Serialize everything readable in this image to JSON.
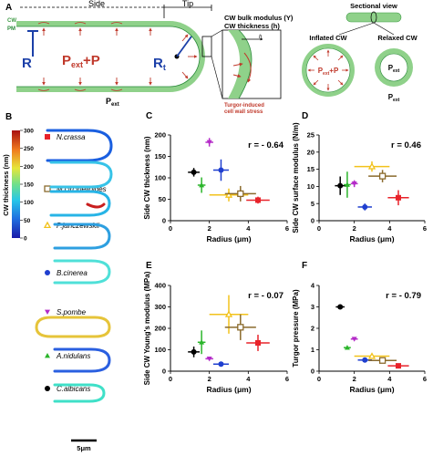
{
  "panelA": {
    "label": "A",
    "side_label": "Side",
    "tip_label": "Tip",
    "cw_label": "CW",
    "pm_label": "PM",
    "R_label": "R",
    "Rt_label": "R",
    "Rt_sub": "t",
    "pext_p_label": "P",
    "pext_p_sub": "ext",
    "pext_p_suffix": "+P",
    "pext_out_label": "P",
    "pext_out_sub": "ext",
    "zoom_title_1": "CW bulk modulus (Y)",
    "zoom_title_2": "CW thickness (h)",
    "h_label": "h",
    "stress_1": "Turgor-induced",
    "stress_2": "cell wall stress",
    "sectional_view": "Sectional view",
    "inflated": "Inflated CW",
    "relaxed": "Relaxed CW",
    "inflated_inner": "P",
    "inflated_inner_sub": "ext",
    "inflated_inner_suffix": "+P",
    "relaxed_inner": "P",
    "relaxed_inner_sub": "ext",
    "relaxed_outer": "P",
    "relaxed_outer_sub": "ext"
  },
  "panelB": {
    "label": "B",
    "colorbar_title": "CW thickness (nm)",
    "colorbar_ticks": [
      "300",
      "250",
      "200",
      "150",
      "100",
      "50",
      "0"
    ],
    "scalebar": "5μm",
    "species": [
      {
        "name": "N.crassa",
        "marker": "square-filled",
        "color": "#e8232a"
      },
      {
        "name": "M.circinelloides",
        "marker": "square-open",
        "color": "#8a6a2c"
      },
      {
        "name": "P.janczewskii",
        "marker": "triangle-open",
        "color": "#f2c21b"
      },
      {
        "name": "B.cinerea",
        "marker": "circle",
        "color": "#1f3fcf"
      },
      {
        "name": "S.pombe",
        "marker": "triangle-down",
        "color": "#b42bc8"
      },
      {
        "name": "A.nidulans",
        "marker": "triangle-up",
        "color": "#2bb52b"
      },
      {
        "name": "C.albicans",
        "marker": "circle",
        "color": "#000000"
      }
    ]
  },
  "colors": {
    "wall": "#8fd18a",
    "wall_dark": "#3e9a45",
    "pm": "#2a8a3a",
    "arrow": "#c0392b",
    "blue": "#1b3fa8"
  },
  "chart_data": [
    {
      "panel": "C",
      "type": "scatter",
      "xlabel": "Radius (μm)",
      "ylabel": "Side CW thickness (nm)",
      "xlim": [
        0,
        6
      ],
      "ylim": [
        0,
        200
      ],
      "xticks": [
        "0",
        "2",
        "4",
        "6"
      ],
      "yticks": [
        "0",
        "50",
        "100",
        "150",
        "200"
      ],
      "annotation": "r = - 0.64",
      "points": [
        {
          "species": "C.albicans",
          "x": 1.2,
          "y": 113,
          "xerr": 0.3,
          "yerr": 10,
          "color": "#000000"
        },
        {
          "species": "A.nidulans",
          "x": 1.6,
          "y": 83,
          "xerr": 0.2,
          "yerr": 18,
          "color": "#2bb52b"
        },
        {
          "species": "S.pombe",
          "x": 2.0,
          "y": 183,
          "xerr": 0.2,
          "yerr": 10,
          "color": "#b42bc8"
        },
        {
          "species": "B.cinerea",
          "x": 2.6,
          "y": 118,
          "xerr": 0.4,
          "yerr": 25,
          "color": "#1f3fcf"
        },
        {
          "species": "P.janczewskii",
          "x": 3.0,
          "y": 60,
          "xerr": 1.0,
          "yerr": 15,
          "color": "#f2c21b"
        },
        {
          "species": "M.circinelloides",
          "x": 3.6,
          "y": 63,
          "xerr": 0.8,
          "yerr": 18,
          "color": "#8a6a2c"
        },
        {
          "species": "N.crassa",
          "x": 4.5,
          "y": 48,
          "xerr": 0.6,
          "yerr": 8,
          "color": "#e8232a"
        }
      ]
    },
    {
      "panel": "D",
      "type": "scatter",
      "xlabel": "Radius (μm)",
      "ylabel": "Side CW surface modulus (N/m)",
      "xlim": [
        0,
        6
      ],
      "ylim": [
        0,
        25
      ],
      "xticks": [
        "0",
        "2",
        "4",
        "6"
      ],
      "yticks": [
        "0",
        "5",
        "10",
        "15",
        "20",
        "25"
      ],
      "annotation": "r = 0.46",
      "points": [
        {
          "species": "C.albicans",
          "x": 1.2,
          "y": 10.2,
          "xerr": 0.3,
          "yerr": 2.7,
          "color": "#000000"
        },
        {
          "species": "A.nidulans",
          "x": 1.6,
          "y": 10.5,
          "xerr": 0.2,
          "yerr": 3.8,
          "color": "#2bb52b"
        },
        {
          "species": "S.pombe",
          "x": 2.0,
          "y": 10.8,
          "xerr": 0.2,
          "yerr": 1.0,
          "color": "#b42bc8"
        },
        {
          "species": "B.cinerea",
          "x": 2.6,
          "y": 4.0,
          "xerr": 0.4,
          "yerr": 1.0,
          "color": "#1f3fcf"
        },
        {
          "species": "P.janczewskii",
          "x": 3.0,
          "y": 15.8,
          "xerr": 1.0,
          "yerr": 1.5,
          "color": "#f2c21b"
        },
        {
          "species": "M.circinelloides",
          "x": 3.6,
          "y": 13.0,
          "xerr": 0.8,
          "yerr": 1.8,
          "color": "#8a6a2c"
        },
        {
          "species": "N.crassa",
          "x": 4.5,
          "y": 6.7,
          "xerr": 0.6,
          "yerr": 2.2,
          "color": "#e8232a"
        }
      ]
    },
    {
      "panel": "E",
      "type": "scatter",
      "xlabel": "Radius (μm)",
      "ylabel": "Side CW Young's modulus (MPa)",
      "xlim": [
        0,
        6
      ],
      "ylim": [
        0,
        400
      ],
      "xticks": [
        "0",
        "2",
        "4",
        "6"
      ],
      "yticks": [
        "0",
        "100",
        "200",
        "300",
        "400"
      ],
      "annotation": "r = - 0.07",
      "points": [
        {
          "species": "C.albicans",
          "x": 1.2,
          "y": 90,
          "xerr": 0.3,
          "yerr": 25,
          "color": "#000000"
        },
        {
          "species": "A.nidulans",
          "x": 1.6,
          "y": 135,
          "xerr": 0.2,
          "yerr": 55,
          "color": "#2bb52b"
        },
        {
          "species": "S.pombe",
          "x": 2.0,
          "y": 58,
          "xerr": 0.2,
          "yerr": 8,
          "color": "#b42bc8"
        },
        {
          "species": "B.cinerea",
          "x": 2.6,
          "y": 33,
          "xerr": 0.4,
          "yerr": 8,
          "color": "#1f3fcf"
        },
        {
          "species": "P.janczewskii",
          "x": 3.0,
          "y": 265,
          "xerr": 1.0,
          "yerr": 90,
          "color": "#f2c21b"
        },
        {
          "species": "M.circinelloides",
          "x": 3.6,
          "y": 205,
          "xerr": 0.8,
          "yerr": 60,
          "color": "#8a6a2c"
        },
        {
          "species": "N.crassa",
          "x": 4.5,
          "y": 132,
          "xerr": 0.6,
          "yerr": 38,
          "color": "#e8232a"
        }
      ]
    },
    {
      "panel": "F",
      "type": "scatter",
      "xlabel": "Radius (μm)",
      "ylabel": "Turgor pressure (MPa)",
      "xlim": [
        0,
        6
      ],
      "ylim": [
        0,
        4
      ],
      "xticks": [
        "0",
        "2",
        "4",
        "6"
      ],
      "yticks": [
        "0",
        "1",
        "2",
        "3",
        "4"
      ],
      "annotation": "r = - 0.79",
      "points": [
        {
          "species": "C.albicans",
          "x": 1.2,
          "y": 3.0,
          "xerr": 0.25,
          "yerr": 0.05,
          "color": "#000000"
        },
        {
          "species": "A.nidulans",
          "x": 1.6,
          "y": 1.1,
          "xerr": 0.2,
          "yerr": 0.05,
          "color": "#2bb52b"
        },
        {
          "species": "S.pombe",
          "x": 2.0,
          "y": 1.5,
          "xerr": 0.2,
          "yerr": 0.05,
          "color": "#b42bc8"
        },
        {
          "species": "B.cinerea",
          "x": 2.6,
          "y": 0.52,
          "xerr": 0.4,
          "yerr": 0.05,
          "color": "#1f3fcf"
        },
        {
          "species": "P.janczewskii",
          "x": 3.0,
          "y": 0.7,
          "xerr": 1.0,
          "yerr": 0.08,
          "color": "#f2c21b"
        },
        {
          "species": "M.circinelloides",
          "x": 3.6,
          "y": 0.5,
          "xerr": 0.8,
          "yerr": 0.05,
          "color": "#8a6a2c"
        },
        {
          "species": "N.crassa",
          "x": 4.5,
          "y": 0.25,
          "xerr": 0.6,
          "yerr": 0.04,
          "color": "#e8232a"
        }
      ]
    }
  ]
}
